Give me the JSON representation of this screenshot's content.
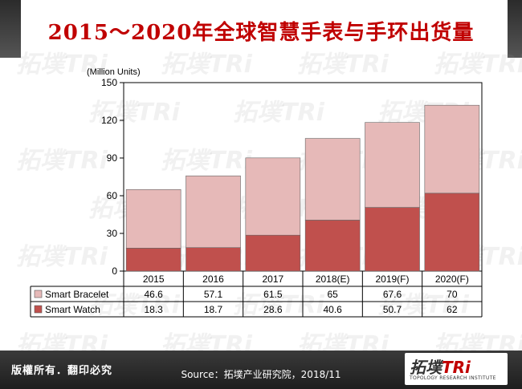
{
  "title": "2015～2020年全球智慧手表与手环出货量",
  "footer": {
    "rights": "版權所有．翻印必究",
    "source": "Source：拓墣产业研究院，2018/11",
    "logo_text_cn": "拓墣",
    "logo_text_en": "TRi",
    "logo_sub": "TOPOLOGY RESEARCH INSTITUTE"
  },
  "watermark_text": "拓墣TRi",
  "colors": {
    "title": "#c00000",
    "smart_watch": "#c0504d",
    "smart_bracelet": "#e6b9b8"
  },
  "chart_data": {
    "type": "bar",
    "stacked": true,
    "unit_label": "(Million Units)",
    "categories": [
      "2015",
      "2016",
      "2017",
      "2018(E)",
      "2019(F)",
      "2020(F)"
    ],
    "series": [
      {
        "name": "Smart Watch",
        "values": [
          18.3,
          18.7,
          28.6,
          40.6,
          50.7,
          62
        ]
      },
      {
        "name": "Smart Bracelet",
        "values": [
          46.6,
          57.1,
          61.5,
          65,
          67.6,
          70
        ]
      }
    ],
    "ylim": [
      0,
      150
    ],
    "yticks": [
      0,
      30,
      60,
      90,
      120,
      150
    ],
    "grid": false,
    "legend": "data-table",
    "table_row_order": [
      "Smart Bracelet",
      "Smart Watch"
    ]
  }
}
